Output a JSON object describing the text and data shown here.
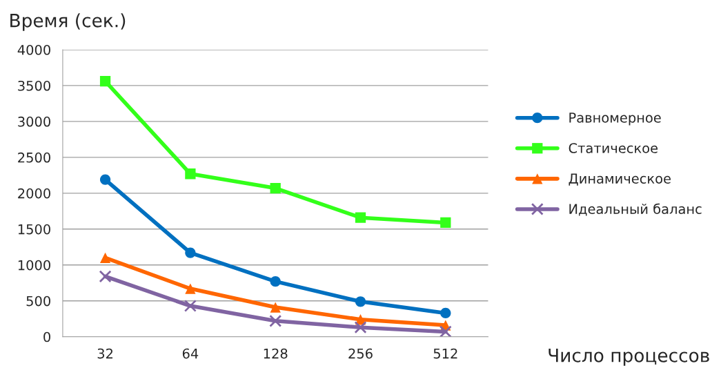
{
  "chart_data": {
    "type": "line",
    "xlabel": "Число процессов",
    "ylabel": "Время (сек.)",
    "categories": [
      "32",
      "64",
      "128",
      "256",
      "512"
    ],
    "series": [
      {
        "name": "Равномерное",
        "color": "#0070c0",
        "marker": "circle",
        "values": [
          2190,
          1170,
          770,
          490,
          330
        ]
      },
      {
        "name": "Статическое",
        "color": "#33ff1a",
        "marker": "square",
        "values": [
          3560,
          2270,
          2070,
          1660,
          1590
        ]
      },
      {
        "name": "Динамическое",
        "color": "#ff6600",
        "marker": "triangle",
        "values": [
          1100,
          670,
          410,
          240,
          160
        ]
      },
      {
        "name": "Идеальный баланс",
        "color": "#8064a2",
        "marker": "cross",
        "values": [
          840,
          430,
          220,
          130,
          70
        ]
      }
    ],
    "ylim": [
      0,
      4000
    ],
    "yticks": [
      0,
      500,
      1000,
      1500,
      2000,
      2500,
      3000,
      3500,
      4000
    ],
    "grid": "y",
    "legend": "right",
    "line_style": "solid"
  }
}
